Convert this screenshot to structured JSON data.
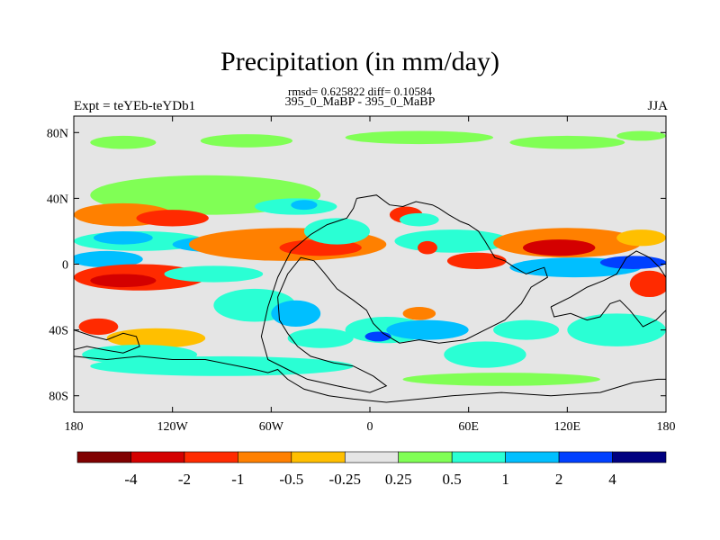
{
  "chart_data": {
    "type": "heatmap",
    "title": "Precipitation (in mm/day)",
    "subtitle": "rmsd= 0.625822  diff= 0.10584",
    "left_label": "Expt = teYEb-teYDb1",
    "center_label": "395_0_MaBP - 395_0_MaBP",
    "right_label": "JJA",
    "x_range": [
      -180,
      180
    ],
    "y_range": [
      -90,
      90
    ],
    "x_ticks": [
      {
        "value": -180,
        "label": "180"
      },
      {
        "value": -120,
        "label": "120W"
      },
      {
        "value": -60,
        "label": "60W"
      },
      {
        "value": 0,
        "label": "0"
      },
      {
        "value": 60,
        "label": "60E"
      },
      {
        "value": 120,
        "label": "120E"
      },
      {
        "value": 180,
        "label": "180"
      }
    ],
    "y_ticks": [
      {
        "value": 80,
        "label": "80N"
      },
      {
        "value": 40,
        "label": "40N"
      },
      {
        "value": 0,
        "label": "0"
      },
      {
        "value": -40,
        "label": "40S"
      },
      {
        "value": -80,
        "label": "80S"
      }
    ],
    "colorbar": {
      "colors": [
        "#800000",
        "#d40000",
        "#ff2a00",
        "#ff8000",
        "#ffbf00",
        "#e5e5e5",
        "#80ff55",
        "#2affd4",
        "#00bfff",
        "#0040ff",
        "#000080"
      ],
      "labels": [
        "-4",
        "-2",
        "-1",
        "-0.5",
        "-0.25",
        "0.25",
        "0.5",
        "1",
        "2",
        "4"
      ]
    },
    "field_blobs": [
      {
        "lon": -150,
        "lat": 74,
        "rx": 20,
        "ry": 4,
        "v": 0.4
      },
      {
        "lon": -75,
        "lat": 75,
        "rx": 28,
        "ry": 4,
        "v": 0.4
      },
      {
        "lon": 30,
        "lat": 77,
        "rx": 45,
        "ry": 4,
        "v": 0.4
      },
      {
        "lon": 120,
        "lat": 74,
        "rx": 35,
        "ry": 4,
        "v": 0.4
      },
      {
        "lon": 165,
        "lat": 78,
        "rx": 15,
        "ry": 3,
        "v": 0.4
      },
      {
        "lon": -100,
        "lat": 42,
        "rx": 70,
        "ry": 12,
        "v": 0.4
      },
      {
        "lon": -150,
        "lat": 30,
        "rx": 30,
        "ry": 7,
        "v": -0.6
      },
      {
        "lon": -120,
        "lat": 28,
        "rx": 22,
        "ry": 5,
        "v": -1.2
      },
      {
        "lon": -140,
        "lat": 14,
        "rx": 40,
        "ry": 6,
        "v": 0.8
      },
      {
        "lon": -150,
        "lat": 16,
        "rx": 18,
        "ry": 4,
        "v": 1.5
      },
      {
        "lon": -90,
        "lat": 12,
        "rx": 30,
        "ry": 5,
        "v": 1.2
      },
      {
        "lon": -160,
        "lat": 3,
        "rx": 22,
        "ry": 5,
        "v": 1.5
      },
      {
        "lon": -50,
        "lat": 12,
        "rx": 60,
        "ry": 10,
        "v": -0.6
      },
      {
        "lon": -30,
        "lat": 10,
        "rx": 25,
        "ry": 5,
        "v": -1.5
      },
      {
        "lon": -20,
        "lat": 20,
        "rx": 20,
        "ry": 8,
        "v": 0.6
      },
      {
        "lon": -45,
        "lat": 35,
        "rx": 25,
        "ry": 5,
        "v": 0.6
      },
      {
        "lon": -40,
        "lat": 36,
        "rx": 8,
        "ry": 3,
        "v": 1.2
      },
      {
        "lon": 22,
        "lat": 30,
        "rx": 10,
        "ry": 5,
        "v": -1.2
      },
      {
        "lon": 30,
        "lat": 27,
        "rx": 12,
        "ry": 4,
        "v": 0.6
      },
      {
        "lon": 50,
        "lat": 14,
        "rx": 35,
        "ry": 7,
        "v": 0.8
      },
      {
        "lon": 35,
        "lat": 10,
        "rx": 6,
        "ry": 4,
        "v": -1.5
      },
      {
        "lon": 65,
        "lat": 2,
        "rx": 18,
        "ry": 5,
        "v": -1.2
      },
      {
        "lon": 120,
        "lat": 13,
        "rx": 45,
        "ry": 9,
        "v": -0.8
      },
      {
        "lon": 115,
        "lat": 10,
        "rx": 22,
        "ry": 5,
        "v": -2.5
      },
      {
        "lon": 165,
        "lat": 16,
        "rx": 15,
        "ry": 5,
        "v": -0.5
      },
      {
        "lon": 125,
        "lat": -2,
        "rx": 40,
        "ry": 6,
        "v": 1.2
      },
      {
        "lon": 160,
        "lat": 1,
        "rx": 20,
        "ry": 4,
        "v": 2.5
      },
      {
        "lon": 170,
        "lat": -12,
        "rx": 12,
        "ry": 8,
        "v": -1.5
      },
      {
        "lon": -140,
        "lat": -8,
        "rx": 40,
        "ry": 8,
        "v": -1.5
      },
      {
        "lon": -150,
        "lat": -10,
        "rx": 20,
        "ry": 4,
        "v": -3.0
      },
      {
        "lon": -95,
        "lat": -6,
        "rx": 30,
        "ry": 5,
        "v": 0.8
      },
      {
        "lon": -70,
        "lat": -25,
        "rx": 25,
        "ry": 10,
        "v": 0.6
      },
      {
        "lon": -45,
        "lat": -30,
        "rx": 15,
        "ry": 8,
        "v": 1.2
      },
      {
        "lon": -30,
        "lat": -45,
        "rx": 20,
        "ry": 6,
        "v": 0.6
      },
      {
        "lon": 10,
        "lat": -40,
        "rx": 25,
        "ry": 8,
        "v": 0.8
      },
      {
        "lon": 5,
        "lat": -44,
        "rx": 8,
        "ry": 3,
        "v": 2.5
      },
      {
        "lon": 35,
        "lat": -40,
        "rx": 25,
        "ry": 6,
        "v": 1.5
      },
      {
        "lon": 30,
        "lat": -30,
        "rx": 10,
        "ry": 4,
        "v": -0.6
      },
      {
        "lon": 70,
        "lat": -55,
        "rx": 25,
        "ry": 8,
        "v": 0.6
      },
      {
        "lon": 95,
        "lat": -40,
        "rx": 20,
        "ry": 6,
        "v": 0.6
      },
      {
        "lon": 150,
        "lat": -40,
        "rx": 30,
        "ry": 10,
        "v": 0.8
      },
      {
        "lon": -165,
        "lat": -38,
        "rx": 12,
        "ry": 5,
        "v": -1.2
      },
      {
        "lon": -130,
        "lat": -45,
        "rx": 30,
        "ry": 6,
        "v": -0.5
      },
      {
        "lon": -140,
        "lat": -55,
        "rx": 35,
        "ry": 6,
        "v": 0.5
      },
      {
        "lon": -90,
        "lat": -62,
        "rx": 80,
        "ry": 6,
        "v": 0.5
      },
      {
        "lon": 80,
        "lat": -70,
        "rx": 60,
        "ry": 4,
        "v": 0.4
      }
    ],
    "coastlines": [
      {
        "name": "continent-north",
        "points": [
          [
            -8,
            40
          ],
          [
            4,
            42
          ],
          [
            12,
            36
          ],
          [
            20,
            35
          ],
          [
            28,
            38
          ],
          [
            38,
            36
          ],
          [
            42,
            34
          ],
          [
            48,
            30
          ],
          [
            55,
            26
          ],
          [
            60,
            24
          ],
          [
            66,
            20
          ],
          [
            70,
            14
          ],
          [
            76,
            4
          ],
          [
            82,
            2
          ],
          [
            88,
            -2
          ],
          [
            95,
            -6
          ],
          [
            100,
            -4
          ],
          [
            106,
            -2
          ],
          [
            108,
            -8
          ],
          [
            98,
            -14
          ],
          [
            92,
            -24
          ],
          [
            82,
            -34
          ],
          [
            70,
            -40
          ],
          [
            58,
            -46
          ],
          [
            42,
            -48
          ],
          [
            30,
            -46
          ],
          [
            18,
            -48
          ],
          [
            8,
            -42
          ],
          [
            2,
            -36
          ],
          [
            -2,
            -28
          ],
          [
            -10,
            -22
          ],
          [
            -20,
            -15
          ],
          [
            -28,
            -5
          ],
          [
            -34,
            2
          ],
          [
            -42,
            4
          ],
          [
            -50,
            -6
          ],
          [
            -56,
            -20
          ],
          [
            -55,
            -34
          ],
          [
            -50,
            -42
          ],
          [
            -44,
            -50
          ],
          [
            -36,
            -56
          ],
          [
            -22,
            -60
          ],
          [
            -10,
            -62
          ],
          [
            2,
            -68
          ],
          [
            10,
            -74
          ],
          [
            0,
            -78
          ],
          [
            -20,
            -74
          ],
          [
            -38,
            -70
          ],
          [
            -50,
            -64
          ],
          [
            -62,
            -58
          ],
          [
            -66,
            -44
          ],
          [
            -62,
            -26
          ],
          [
            -56,
            -8
          ],
          [
            -48,
            8
          ],
          [
            -36,
            18
          ],
          [
            -26,
            24
          ],
          [
            -14,
            28
          ],
          [
            -10,
            34
          ],
          [
            -8,
            40
          ]
        ]
      },
      {
        "name": "continent-south",
        "points": [
          [
            -180,
            -56
          ],
          [
            -160,
            -58
          ],
          [
            -140,
            -56
          ],
          [
            -120,
            -58
          ],
          [
            -100,
            -58
          ],
          [
            -80,
            -62
          ],
          [
            -70,
            -64
          ],
          [
            -62,
            -66
          ],
          [
            -56,
            -64
          ],
          [
            -50,
            -70
          ],
          [
            -40,
            -76
          ],
          [
            -25,
            -80
          ],
          [
            -10,
            -82
          ],
          [
            10,
            -84
          ],
          [
            30,
            -82
          ],
          [
            50,
            -80
          ],
          [
            80,
            -78
          ],
          [
            110,
            -80
          ],
          [
            140,
            -78
          ],
          [
            160,
            -72
          ],
          [
            175,
            -70
          ],
          [
            180,
            -70
          ]
        ]
      },
      {
        "name": "continent-east",
        "points": [
          [
            110,
            -26
          ],
          [
            122,
            -20
          ],
          [
            132,
            -14
          ],
          [
            142,
            -10
          ],
          [
            150,
            -6
          ],
          [
            156,
            4
          ],
          [
            162,
            8
          ],
          [
            170,
            4
          ],
          [
            176,
            -2
          ],
          [
            180,
            -8
          ],
          [
            180,
            -28
          ],
          [
            174,
            -34
          ],
          [
            166,
            -38
          ],
          [
            158,
            -28
          ],
          [
            152,
            -22
          ],
          [
            146,
            -24
          ],
          [
            140,
            -32
          ],
          [
            132,
            -34
          ],
          [
            122,
            -30
          ],
          [
            112,
            -32
          ],
          [
            110,
            -26
          ]
        ]
      },
      {
        "name": "landmass-west",
        "points": [
          [
            -180,
            -40
          ],
          [
            -168,
            -44
          ],
          [
            -160,
            -46
          ],
          [
            -150,
            -42
          ],
          [
            -142,
            -44
          ],
          [
            -140,
            -50
          ],
          [
            -150,
            -54
          ],
          [
            -162,
            -52
          ],
          [
            -172,
            -50
          ],
          [
            -180,
            -52
          ]
        ]
      }
    ]
  }
}
